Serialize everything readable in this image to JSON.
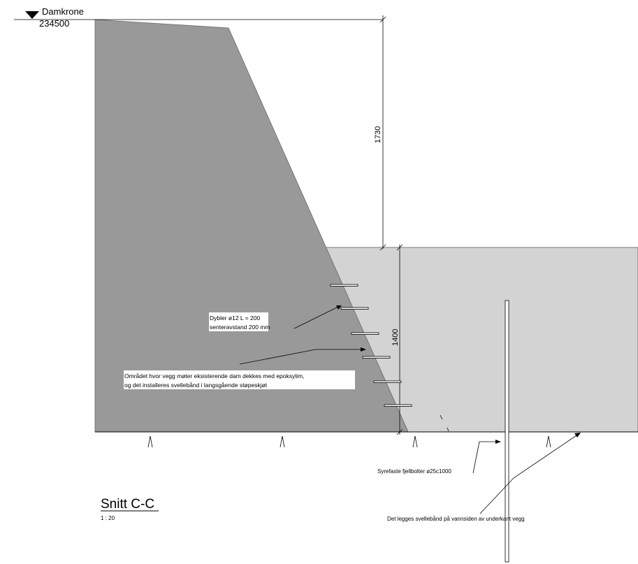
{
  "level_marker": {
    "name": "Damkrone",
    "elevation": "234500"
  },
  "dimensions": {
    "upper": "1730",
    "lower": "1400"
  },
  "annotations": {
    "dowels_line1": "Dybler ø12 L = 200",
    "dowels_line2": "senteravstand 200 mm",
    "epoxy_line1": "Området hvor vegg møter eksisterende dam dekkes med epoksylim,",
    "epoxy_line2": "og det installeres svellebånd i langsgående støpeskjøt",
    "rock_bolts": "Syrefaste fjellbolter ø25c1000",
    "swelling_tape": "Det legges svellebånd på vannsiden av underkant vegg"
  },
  "section": {
    "title": "Snitt C-C",
    "scale": "1 : 20"
  },
  "colors": {
    "existing_dam": "#999999",
    "new_wall": "#d3d3d3",
    "line": "#000000"
  }
}
